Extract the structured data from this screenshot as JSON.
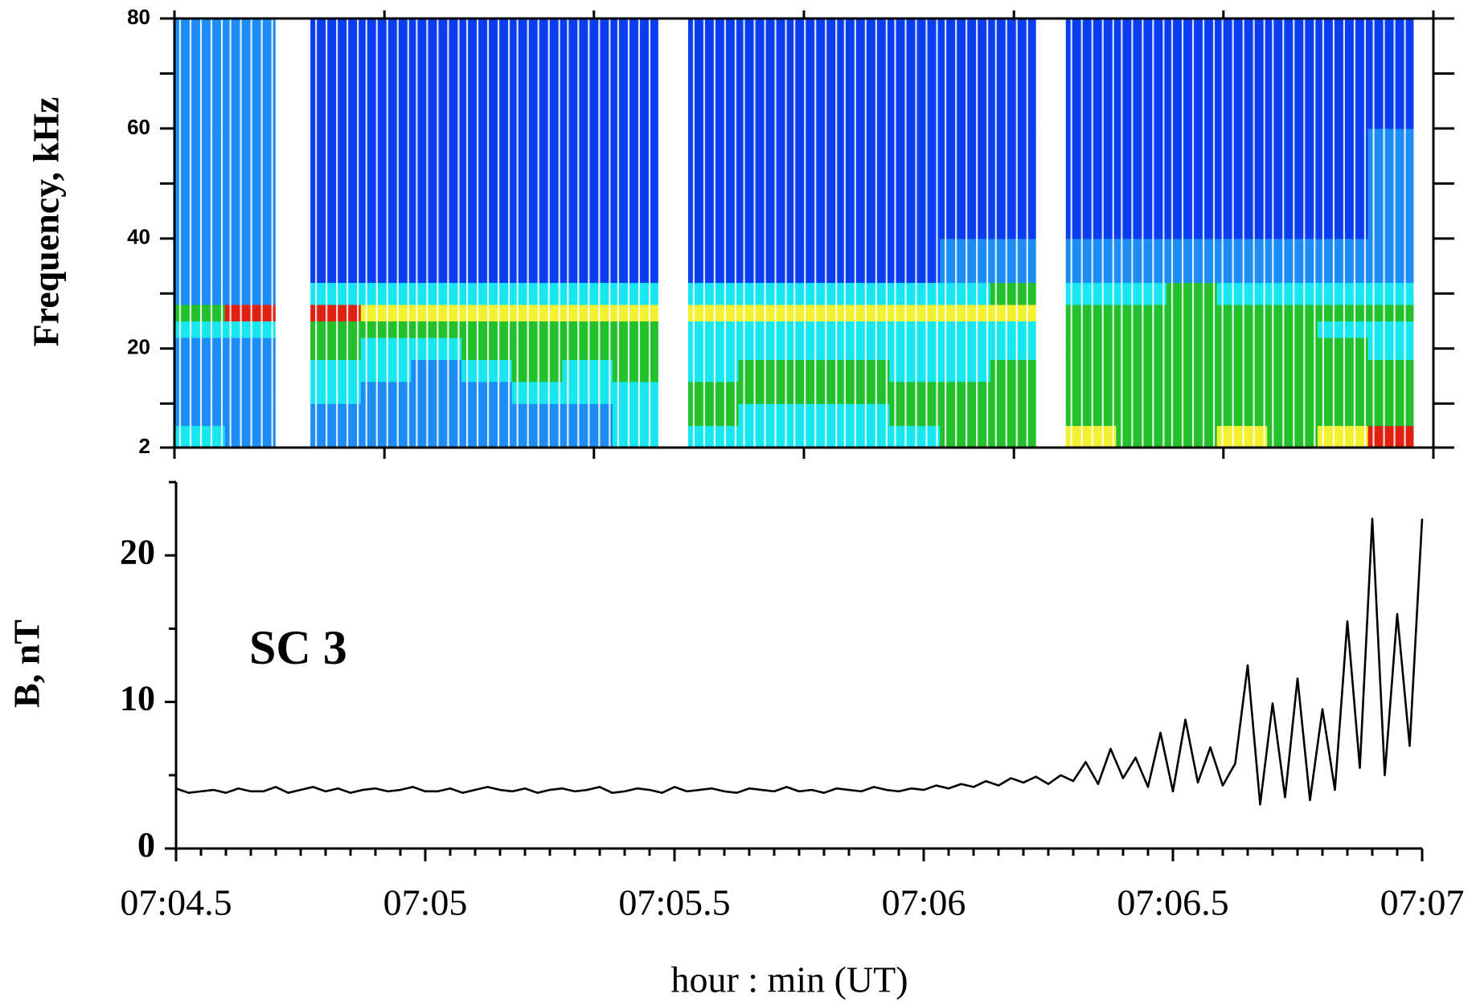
{
  "chart_data": [
    {
      "type": "spectrogram",
      "ylabel": "Frequency, kHz",
      "xlim": [
        4.5,
        7.0
      ],
      "xticks": [
        4.5,
        4.917,
        5.333,
        5.75,
        6.167,
        6.583,
        7.0
      ],
      "ylim": [
        2,
        80
      ],
      "yticks": [
        2,
        20,
        40,
        60,
        80
      ],
      "yminorticks": [
        10,
        30,
        50,
        70
      ],
      "xbins": [
        4.5,
        4.6,
        4.7,
        4.77,
        4.87,
        4.97,
        5.07,
        5.17,
        5.27,
        5.37,
        5.46,
        5.52,
        5.62,
        5.72,
        5.82,
        5.92,
        6.02,
        6.12,
        6.21,
        6.27,
        6.37,
        6.47,
        6.57,
        6.67,
        6.77,
        6.87,
        6.96
      ],
      "ybins": [
        2,
        6,
        10,
        14,
        18,
        22,
        25,
        28,
        32,
        40,
        60,
        80
      ],
      "colors": [
        "#0a3cf0",
        "#1e8cf5",
        "#18e6f0",
        "#22c02a",
        "#f2f030",
        "#e02010"
      ],
      "levels": [
        [
          2,
          1,
          1,
          1,
          1,
          2,
          3,
          1,
          1,
          1,
          1
        ],
        [
          1,
          1,
          1,
          1,
          1,
          2,
          5,
          1,
          1,
          1,
          1
        ],
        null,
        [
          1,
          1,
          2,
          2,
          3,
          3,
          5,
          2,
          0,
          0,
          0
        ],
        [
          1,
          1,
          1,
          2,
          2,
          3,
          4,
          2,
          0,
          0,
          0
        ],
        [
          1,
          1,
          1,
          1,
          2,
          3,
          4,
          2,
          0,
          0,
          0
        ],
        [
          1,
          1,
          1,
          2,
          3,
          3,
          4,
          2,
          0,
          0,
          0
        ],
        [
          1,
          1,
          2,
          3,
          3,
          3,
          4,
          2,
          0,
          0,
          0
        ],
        [
          1,
          1,
          2,
          2,
          3,
          3,
          4,
          2,
          0,
          0,
          0
        ],
        [
          2,
          2,
          2,
          3,
          3,
          3,
          4,
          2,
          0,
          0,
          0
        ],
        null,
        [
          2,
          3,
          3,
          2,
          2,
          2,
          4,
          2,
          0,
          0,
          0
        ],
        [
          2,
          2,
          3,
          3,
          2,
          2,
          4,
          2,
          0,
          0,
          0
        ],
        [
          2,
          2,
          3,
          3,
          2,
          2,
          4,
          2,
          0,
          0,
          0
        ],
        [
          2,
          2,
          3,
          3,
          2,
          2,
          4,
          2,
          0,
          0,
          0
        ],
        [
          2,
          3,
          3,
          2,
          2,
          2,
          4,
          2,
          0,
          0,
          0
        ],
        [
          3,
          3,
          3,
          2,
          2,
          2,
          4,
          2,
          1,
          0,
          0
        ],
        [
          3,
          3,
          3,
          3,
          2,
          2,
          4,
          3,
          1,
          0,
          0
        ],
        null,
        [
          4,
          3,
          3,
          3,
          3,
          3,
          3,
          2,
          1,
          0,
          0
        ],
        [
          3,
          3,
          3,
          3,
          3,
          3,
          3,
          2,
          1,
          0,
          0
        ],
        [
          3,
          3,
          3,
          3,
          3,
          3,
          3,
          3,
          1,
          0,
          0
        ],
        [
          4,
          3,
          3,
          3,
          3,
          3,
          3,
          2,
          1,
          0,
          0
        ],
        [
          3,
          3,
          3,
          3,
          3,
          3,
          3,
          2,
          1,
          0,
          0
        ],
        [
          4,
          3,
          3,
          3,
          3,
          2,
          3,
          2,
          1,
          0,
          0
        ],
        [
          5,
          3,
          3,
          3,
          2,
          2,
          3,
          2,
          1,
          1,
          0
        ]
      ]
    },
    {
      "type": "line",
      "ylabel": "B, nT",
      "xlabel": "hour : min (UT)",
      "annotation": "SC 3",
      "color": "#000000",
      "xlim": [
        4.5,
        7.0
      ],
      "xticks": [
        {
          "value": 4.5,
          "label": "07:04.5"
        },
        {
          "value": 5.0,
          "label": "07:05"
        },
        {
          "value": 5.5,
          "label": "07:05.5"
        },
        {
          "value": 6.0,
          "label": "07:06"
        },
        {
          "value": 6.5,
          "label": "07:06.5"
        },
        {
          "value": 7.0,
          "label": "07:07"
        }
      ],
      "xminorticks": [
        4.55,
        4.6,
        4.65,
        4.7,
        4.75,
        4.8,
        4.85,
        4.9,
        4.95,
        5.05,
        5.1,
        5.15,
        5.2,
        5.25,
        5.3,
        5.35,
        5.4,
        5.45,
        5.55,
        5.6,
        5.65,
        5.7,
        5.75,
        5.8,
        5.85,
        5.9,
        5.95,
        6.05,
        6.1,
        6.15,
        6.2,
        6.25,
        6.3,
        6.35,
        6.4,
        6.45,
        6.55,
        6.6,
        6.65,
        6.7,
        6.75,
        6.8,
        6.85,
        6.9,
        6.95
      ],
      "ylim": [
        0,
        25
      ],
      "yticks": [
        0,
        10,
        20
      ],
      "yminorticks": [
        5,
        15,
        25
      ],
      "x": [
        4.5,
        4.525,
        4.55,
        4.575,
        4.6,
        4.625,
        4.65,
        4.675,
        4.7,
        4.725,
        4.75,
        4.775,
        4.8,
        4.825,
        4.85,
        4.875,
        4.9,
        4.925,
        4.95,
        4.975,
        5.0,
        5.025,
        5.05,
        5.075,
        5.1,
        5.125,
        5.15,
        5.175,
        5.2,
        5.225,
        5.25,
        5.275,
        5.3,
        5.325,
        5.35,
        5.375,
        5.4,
        5.425,
        5.45,
        5.475,
        5.5,
        5.525,
        5.55,
        5.575,
        5.6,
        5.625,
        5.65,
        5.675,
        5.7,
        5.725,
        5.75,
        5.775,
        5.8,
        5.825,
        5.85,
        5.875,
        5.9,
        5.925,
        5.95,
        5.975,
        6.0,
        6.025,
        6.05,
        6.075,
        6.1,
        6.125,
        6.15,
        6.175,
        6.2,
        6.225,
        6.25,
        6.275,
        6.3,
        6.325,
        6.35,
        6.375,
        6.4,
        6.425,
        6.45,
        6.475,
        6.5,
        6.525,
        6.55,
        6.575,
        6.6,
        6.625,
        6.65,
        6.675,
        6.7,
        6.725,
        6.75,
        6.775,
        6.8,
        6.825,
        6.85,
        6.875,
        6.9,
        6.925,
        6.95,
        6.975,
        7.0
      ],
      "values": [
        4.1,
        3.8,
        3.9,
        4.0,
        3.8,
        4.1,
        3.9,
        3.9,
        4.2,
        3.8,
        4.0,
        4.2,
        3.9,
        4.1,
        3.8,
        4.0,
        4.1,
        3.9,
        4.0,
        4.2,
        3.9,
        3.9,
        4.1,
        3.8,
        4.0,
        4.2,
        4.0,
        3.9,
        4.1,
        3.8,
        4.0,
        4.1,
        3.9,
        4.0,
        4.2,
        3.8,
        3.9,
        4.1,
        4.0,
        3.8,
        4.2,
        3.9,
        4.0,
        4.1,
        3.9,
        3.8,
        4.1,
        4.0,
        3.9,
        4.2,
        3.9,
        4.0,
        3.8,
        4.1,
        4.0,
        3.9,
        4.2,
        4.0,
        3.9,
        4.1,
        4.0,
        4.3,
        4.1,
        4.4,
        4.2,
        4.6,
        4.3,
        4.8,
        4.5,
        4.9,
        4.4,
        5.0,
        4.6,
        5.9,
        4.4,
        6.8,
        4.8,
        6.2,
        4.2,
        7.9,
        3.9,
        8.8,
        4.5,
        6.9,
        4.3,
        5.8,
        12.5,
        3.0,
        9.9,
        3.5,
        11.6,
        3.3,
        9.5,
        4.0,
        15.5,
        5.5,
        22.5,
        5.0,
        16.0,
        7.0,
        22.5
      ]
    }
  ]
}
